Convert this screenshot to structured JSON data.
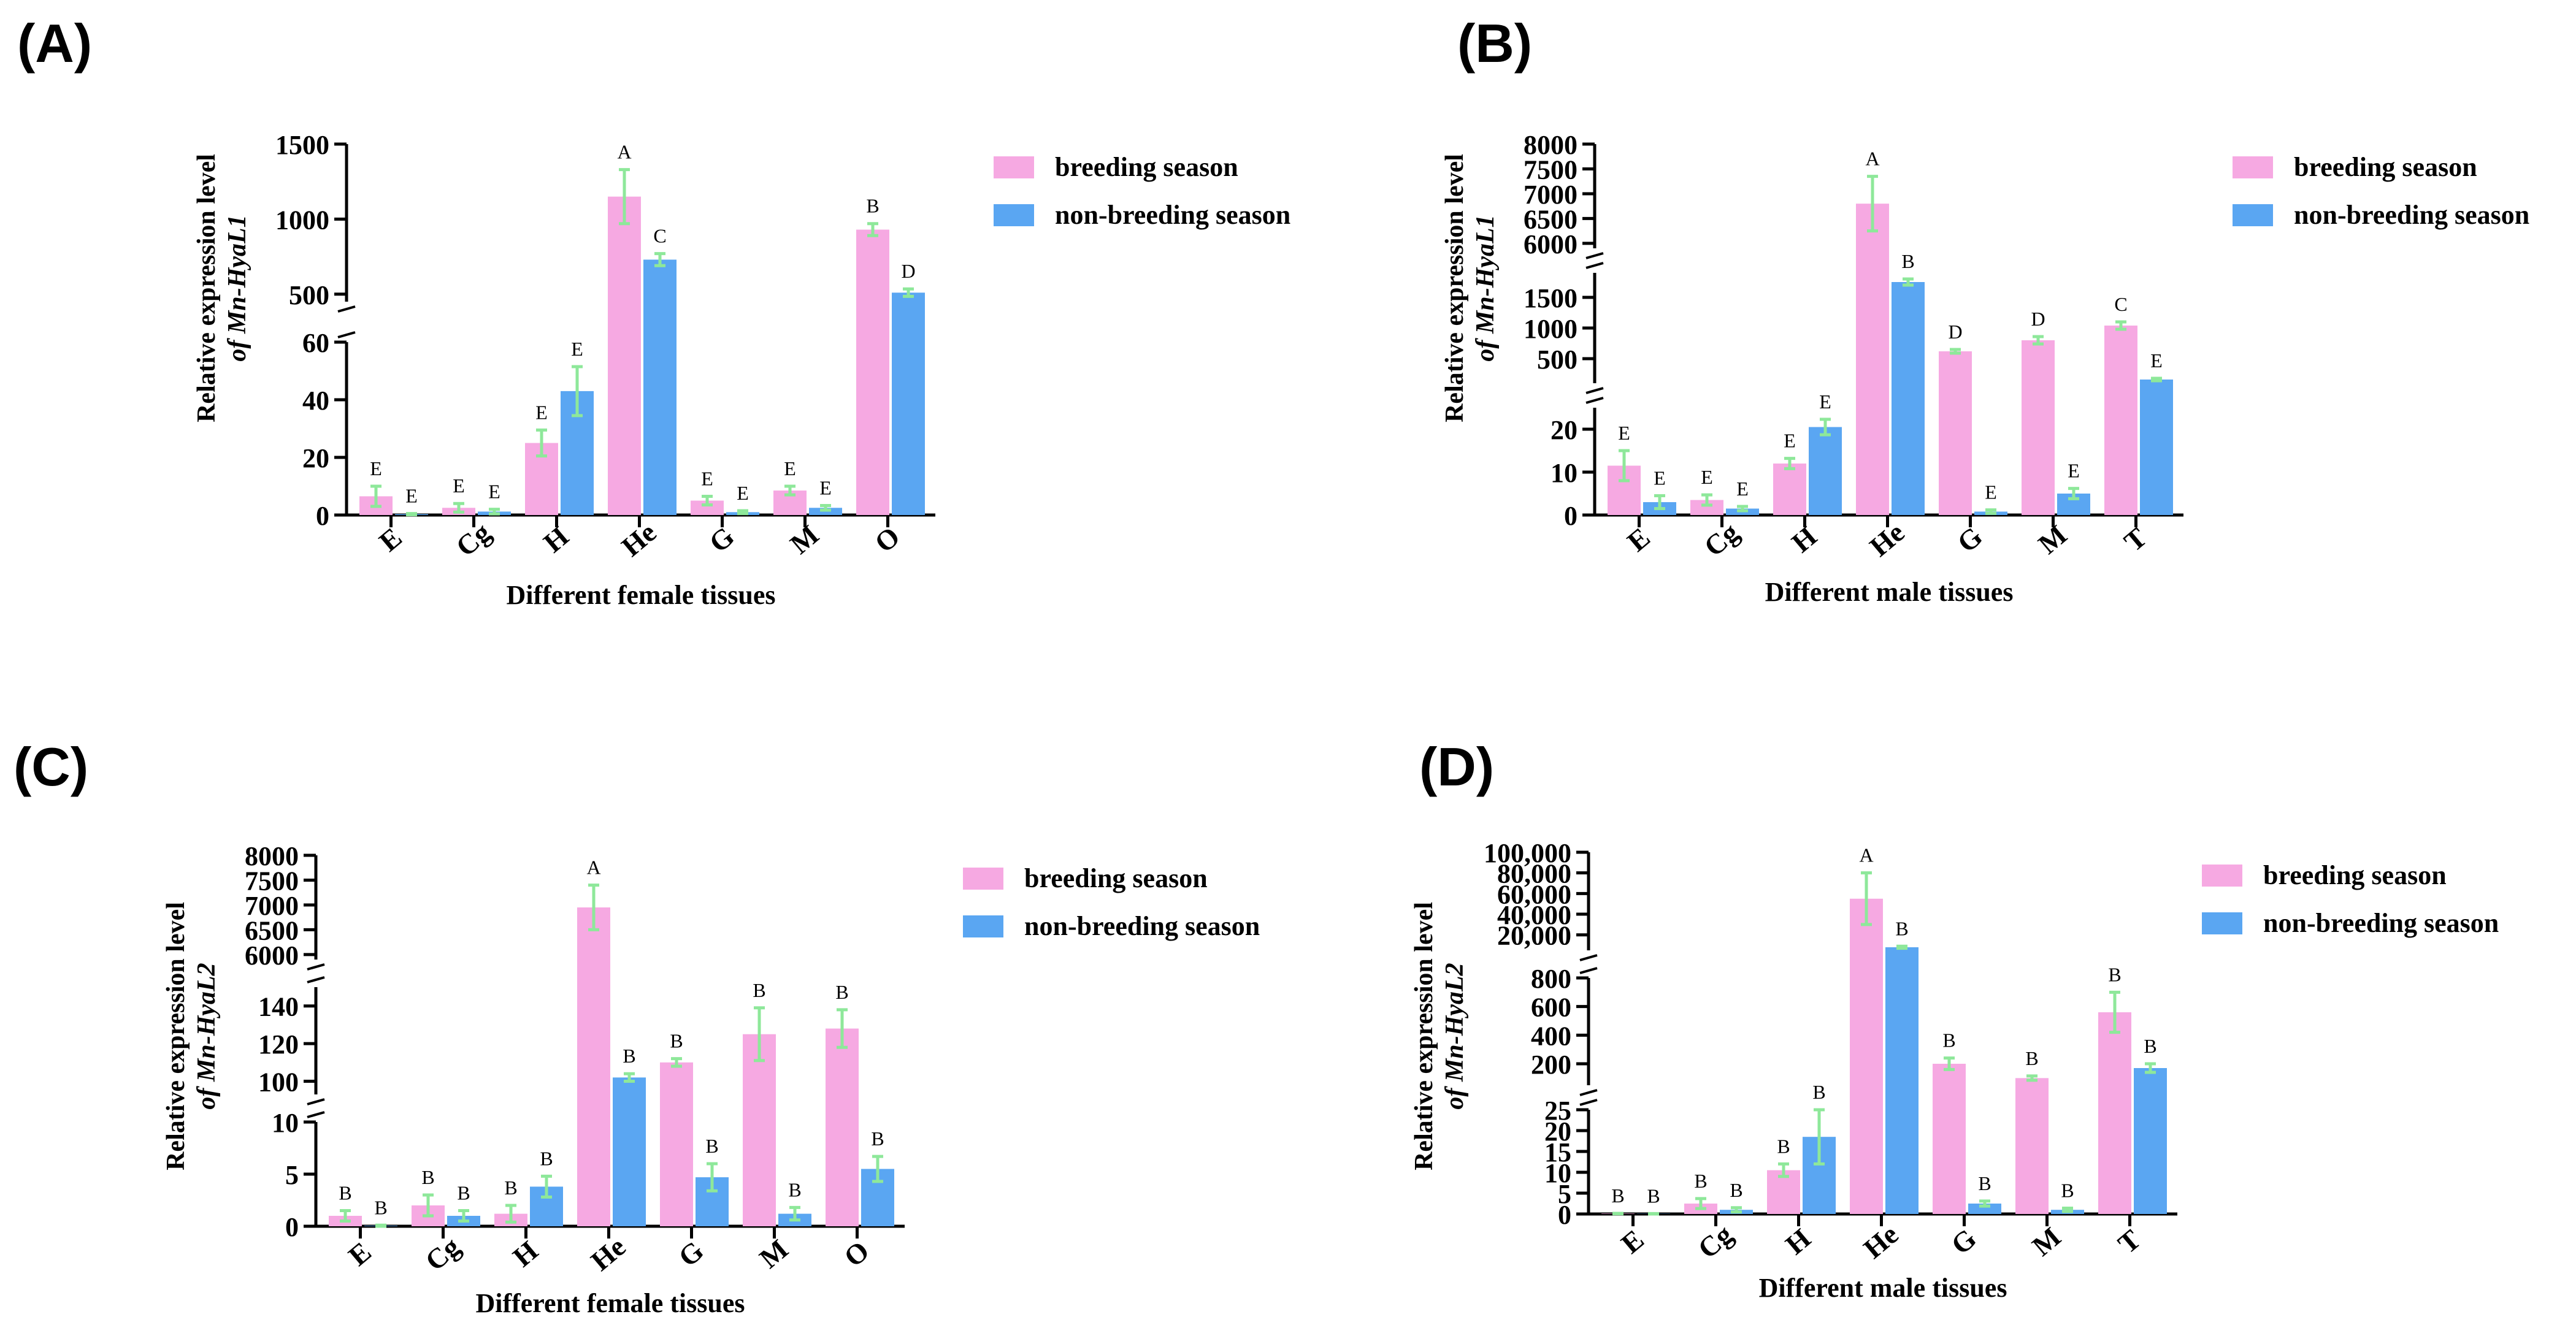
{
  "figure": {
    "colors": {
      "breeding": "#F6A9E2",
      "non_breeding": "#5AA6F2",
      "error_bar": "#8EE89A",
      "axis": "#000000"
    }
  },
  "chart_data": [
    {
      "panel": "(A)",
      "type": "bar",
      "ylabel_line1": "Relative expression level",
      "ylabel_line2": "of Mn-HyaL1",
      "xlabel": "Different female tissues",
      "categories": [
        "E",
        "Cg",
        "H",
        "He",
        "G",
        "M",
        "O"
      ],
      "segments": [
        {
          "ylim": [
            0,
            60
          ],
          "ticks": [
            "0",
            "20",
            "40",
            "60"
          ],
          "tick_values": [
            0,
            20,
            40,
            60
          ]
        },
        {
          "ylim": [
            450,
            1500
          ],
          "ticks": [
            "500",
            "1000",
            "1500"
          ],
          "tick_values": [
            500,
            1000,
            1500
          ]
        }
      ],
      "series": [
        {
          "name": "breeding season",
          "values": [
            6.5,
            2.5,
            25,
            1150,
            5,
            8.5,
            930
          ],
          "errors": [
            3.5,
            1.5,
            4.5,
            180,
            1.5,
            1.5,
            40
          ],
          "letters": [
            "E",
            "E",
            "E",
            "A",
            "E",
            "E",
            "B"
          ]
        },
        {
          "name": "non-breeding season",
          "values": [
            0.3,
            1.2,
            43,
            730,
            1,
            2.5,
            510
          ],
          "errors": [
            0.2,
            0.8,
            8.5,
            40,
            0.5,
            0.8,
            25
          ],
          "letters": [
            "E",
            "E",
            "E",
            "C",
            "E",
            "E",
            "D"
          ]
        }
      ]
    },
    {
      "panel": "(B)",
      "type": "bar",
      "ylabel_line1": "Relative expression level",
      "ylabel_line2": "of Mn-HyaL1",
      "xlabel": "Different male tissues",
      "categories": [
        "E",
        "Cg",
        "H",
        "He",
        "G",
        "M",
        "T"
      ],
      "segments": [
        {
          "ylim": [
            0,
            25
          ],
          "ticks": [
            "0",
            "10",
            "20"
          ],
          "tick_values": [
            0,
            10,
            20
          ]
        },
        {
          "ylim": [
            100,
            1900
          ],
          "ticks": [
            "500",
            "1000",
            "1500"
          ],
          "tick_values": [
            500,
            1000,
            1500
          ]
        },
        {
          "ylim": [
            5900,
            8000
          ],
          "ticks": [
            "6000",
            "6500",
            "7000",
            "7500",
            "8000"
          ],
          "tick_values": [
            6000,
            6500,
            7000,
            7500,
            8000
          ]
        }
      ],
      "series": [
        {
          "name": "breeding season",
          "values": [
            11.5,
            3.5,
            12,
            6800,
            620,
            800,
            1040
          ],
          "errors": [
            3.5,
            1.2,
            1.2,
            550,
            30,
            60,
            60
          ],
          "letters": [
            "E",
            "E",
            "E",
            "A",
            "D",
            "D",
            "C"
          ]
        },
        {
          "name": "non-breeding season",
          "values": [
            3,
            1.5,
            20.5,
            1750,
            0.8,
            5,
            160
          ],
          "errors": [
            1.5,
            0.5,
            1.8,
            50,
            0.4,
            1.2,
            20
          ],
          "letters": [
            "E",
            "E",
            "E",
            "B",
            "E",
            "E",
            "E"
          ]
        }
      ]
    },
    {
      "panel": "(C)",
      "type": "bar",
      "ylabel_line1": "Relative expression level",
      "ylabel_line2": "of Mn-HyaL2",
      "xlabel": "Different female tissues",
      "categories": [
        "E",
        "Cg",
        "H",
        "He",
        "G",
        "M",
        "O"
      ],
      "segments": [
        {
          "ylim": [
            0,
            10
          ],
          "ticks": [
            "0",
            "5",
            "10"
          ],
          "tick_values": [
            0,
            5,
            10
          ]
        },
        {
          "ylim": [
            93,
            150
          ],
          "ticks": [
            "100",
            "120",
            "140"
          ],
          "tick_values": [
            100,
            120,
            140
          ]
        },
        {
          "ylim": [
            5900,
            8000
          ],
          "ticks": [
            "6000",
            "6500",
            "7000",
            "7500",
            "8000"
          ],
          "tick_values": [
            6000,
            6500,
            7000,
            7500,
            8000
          ]
        }
      ],
      "series": [
        {
          "name": "breeding season",
          "values": [
            1,
            2,
            1.2,
            6950,
            110,
            125,
            128
          ],
          "errors": [
            0.5,
            1,
            0.8,
            450,
            2,
            14,
            10
          ],
          "letters": [
            "B",
            "B",
            "B",
            "A",
            "B",
            "B",
            "B"
          ]
        },
        {
          "name": "non-breeding season",
          "values": [
            0.05,
            1,
            3.8,
            102,
            4.7,
            1.2,
            5.5
          ],
          "errors": [
            0.05,
            0.5,
            1,
            2,
            1.3,
            0.6,
            1.2
          ],
          "letters": [
            "B",
            "B",
            "B",
            "B",
            "B",
            "B",
            "B"
          ]
        }
      ]
    },
    {
      "panel": "(D)",
      "type": "bar",
      "ylabel_line1": "Relative expression level",
      "ylabel_line2": "of Mn-HyaL2",
      "xlabel": "Different male tissues",
      "categories": [
        "E",
        "Cg",
        "H",
        "He",
        "G",
        "M",
        "T"
      ],
      "segments": [
        {
          "ylim": [
            0,
            25
          ],
          "ticks": [
            "0",
            "5",
            "10",
            "15",
            "20",
            "25"
          ],
          "tick_values": [
            0,
            5,
            10,
            15,
            20,
            25
          ]
        },
        {
          "ylim": [
            50,
            800
          ],
          "ticks": [
            "200",
            "400",
            "600",
            "800"
          ],
          "tick_values": [
            200,
            400,
            600,
            800
          ]
        },
        {
          "ylim": [
            5000,
            100000
          ],
          "ticks": [
            "20,000",
            "40,000",
            "60,000",
            "80,000",
            "100,000"
          ],
          "tick_values": [
            20000,
            40000,
            60000,
            80000,
            100000
          ]
        }
      ],
      "series": [
        {
          "name": "breeding season",
          "values": [
            0.1,
            2.5,
            10.5,
            55000,
            200,
            100,
            560
          ],
          "errors": [
            0.05,
            1.2,
            1.5,
            25000,
            40,
            15,
            140
          ],
          "letters": [
            "B",
            "B",
            "B",
            "A",
            "B",
            "B",
            "B"
          ]
        },
        {
          "name": "non-breeding season",
          "values": [
            0.05,
            1,
            18.5,
            8000,
            2.5,
            1,
            170
          ],
          "errors": [
            0.05,
            0.5,
            6.5,
            1000,
            0.6,
            0.4,
            30
          ],
          "letters": [
            "B",
            "B",
            "B",
            "B",
            "B",
            "B",
            "B"
          ]
        }
      ]
    }
  ]
}
